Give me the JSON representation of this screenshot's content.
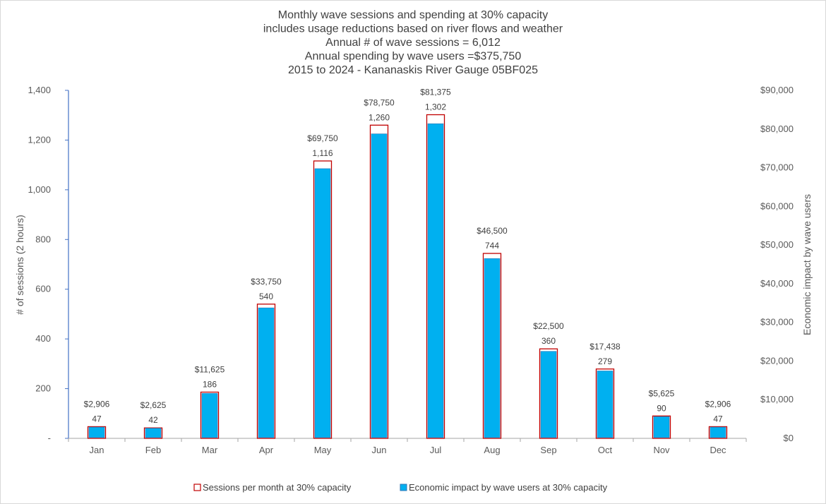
{
  "chart_data": {
    "type": "bar",
    "title_lines": [
      "Monthly wave sessions and spending at 30% capacity",
      "includes usage reductions based on river flows and weather",
      "Annual # of wave sessions = 6,012",
      "Annual spending by wave users =$375,750",
      "2015 to 2024 - Kananaskis River Gauge 05BF025"
    ],
    "categories": [
      "Jan",
      "Feb",
      "Mar",
      "Apr",
      "May",
      "Jun",
      "Jul",
      "Aug",
      "Sep",
      "Oct",
      "Nov",
      "Dec"
    ],
    "series": [
      {
        "name": "Sessions per month at 30% capacity",
        "axis": "left",
        "values": [
          47,
          42,
          186,
          540,
          1116,
          1260,
          1302,
          744,
          360,
          279,
          90,
          47
        ],
        "labels": [
          "47",
          "42",
          "186",
          "540",
          "1,116",
          "1,260",
          "1,302",
          "744",
          "360",
          "279",
          "90",
          "47"
        ]
      },
      {
        "name": "Economic impact by wave users at 30% capacity",
        "axis": "right",
        "values": [
          2906,
          2625,
          11625,
          33750,
          69750,
          78750,
          81375,
          46500,
          22500,
          17438,
          5625,
          2906
        ],
        "labels": [
          "$2,906",
          "$2,625",
          "$11,625",
          "$33,750",
          "$69,750",
          "$78,750",
          "$81,375",
          "$46,500",
          "$22,500",
          "$17,438",
          "$5,625",
          "$2,906"
        ]
      }
    ],
    "ylabel": "# of sessions (2 hours)",
    "y2label": "Economic impact by wave users",
    "ylim": [
      0,
      1400
    ],
    "y2lim": [
      0,
      90000
    ],
    "yticks": [
      0,
      200,
      400,
      600,
      800,
      1000,
      1200,
      1400
    ],
    "yticklabels": [
      "-",
      "200",
      "400",
      "600",
      "800",
      "1,000",
      "1,200",
      "1,400"
    ],
    "y2ticks": [
      0,
      10000,
      20000,
      30000,
      40000,
      50000,
      60000,
      70000,
      80000,
      90000
    ],
    "y2ticklabels": [
      "$0",
      "$10,000",
      "$20,000",
      "$30,000",
      "$40,000",
      "$50,000",
      "$60,000",
      "$70,000",
      "$80,000",
      "$90,000"
    ],
    "legend_position": "bottom",
    "colors": {
      "sessions_fill": "#ffffff",
      "sessions_stroke": "#c00000",
      "impact_fill": "#00b0f0",
      "impact_stroke": "#2e75b6",
      "left_axis": "#4472c4",
      "baseline": "#a6a6a6"
    }
  }
}
